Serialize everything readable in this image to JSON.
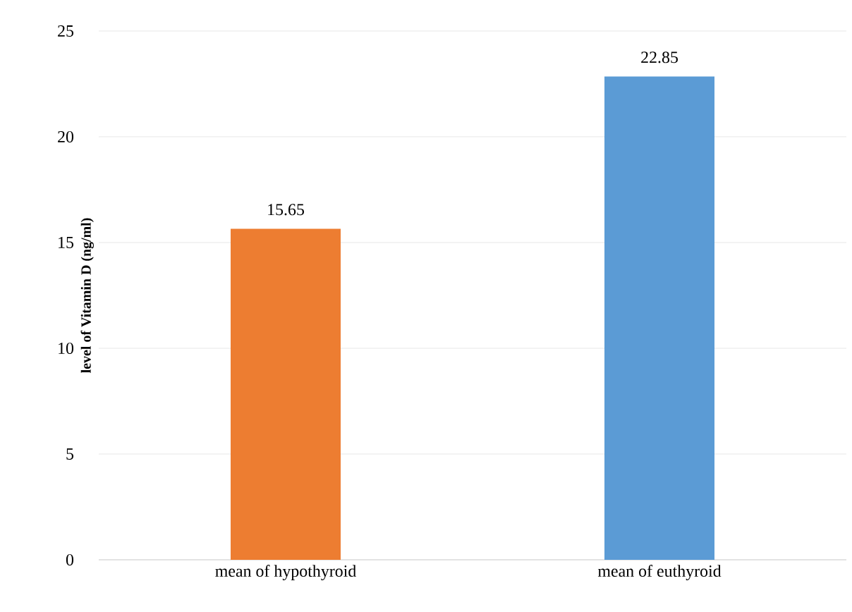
{
  "chart_data": {
    "type": "bar",
    "ylabel": "**level of Vitamin D (ng/ml)**",
    "categories": [
      "mean of hypothyroid",
      "mean of euthyroid"
    ],
    "values": [
      15.65,
      22.85
    ],
    "colors": [
      "#ed7d31",
      "#5b9bd5"
    ],
    "ylim": [
      0,
      25
    ],
    "yticks": [
      0,
      5,
      10,
      15,
      20,
      25
    ],
    "grid": "y",
    "data_labels": true
  }
}
